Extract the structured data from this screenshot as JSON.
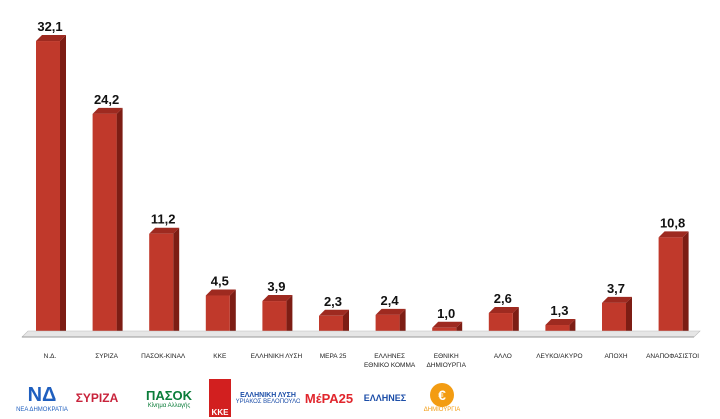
{
  "chart_data": {
    "type": "bar",
    "categories": [
      "Ν.Δ.",
      "ΣΥΡΙΖΑ",
      "ΠΑΣΟΚ-ΚΙΝΑΛ",
      "ΚΚΕ",
      "ΕΛΛΗΝΙΚΗ ΛΥΣΗ",
      "ΜΕΡΑ 25",
      "ΕΛΛΗΝΕΣ ΕΘΝΙΚΟ ΚΟΜΜΑ",
      "ΕΘΝΙΚΗ ΔΗΜΙΟΥΡΓΙΑ",
      "ΑΛΛΟ",
      "ΛΕΥΚΟ/ΑΚΥΡΟ",
      "ΑΠΟΧΗ",
      "ΑΝΑΠΟΦΑΣΙΣΤΟΙ"
    ],
    "values": [
      32.1,
      24.2,
      11.2,
      4.5,
      3.9,
      2.3,
      2.4,
      1.0,
      2.6,
      1.3,
      3.7,
      10.8
    ],
    "value_labels": [
      "32,1",
      "24,2",
      "11,2",
      "4,5",
      "3,9",
      "2,3",
      "2,4",
      "1,0",
      "2,6",
      "1,3",
      "3,7",
      "10,8"
    ],
    "title": "",
    "xlabel": "",
    "ylabel": "",
    "ylim": [
      0,
      34
    ],
    "grid": false,
    "bar_color": "#c0392b",
    "bar_side_color": "#7d1d14",
    "bar_top_color": "#9e2a20"
  },
  "logos": [
    {
      "name": "nd-logo",
      "text": "ΝΕΑ ΔΗΜΟΚΡΑΤΙΑ",
      "mark": "ΝΔ",
      "color": "#1f5fbf"
    },
    {
      "name": "syriza-logo",
      "text": "ΣΥΡΙΖΑ",
      "mark": "",
      "color": "#c8233b"
    },
    {
      "name": "pasok-logo",
      "text": "Κίνημα Αλλαγής",
      "mark": "ΠΑΣΟΚ",
      "color": "#0b7d3a"
    },
    {
      "name": "kke-logo",
      "text": "ΚΚΕ",
      "mark": "",
      "color": "#d21f1f"
    },
    {
      "name": "elliniki-lysi-logo",
      "text": "ΚΥΡΙΑΚΟΣ ΒΕΛΟΠΟΥΛΟΣ",
      "mark": "ΕΛΛΗΝΙΚΗ ΛΥΣΗ",
      "color": "#1c4ea8"
    },
    {
      "name": "mera25-logo",
      "text": "",
      "mark": "ΜέΡΑ25",
      "color": "#e1262d"
    },
    {
      "name": "ellines-logo",
      "text": "ΕΛΛΗΝΕΣ",
      "mark": "",
      "color": "#1c4ea8"
    },
    {
      "name": "ethniki-dimiourgia-logo",
      "text": "ΔΗΜΙΟΥΡΓΙΑ",
      "mark": "€",
      "color": "#f39c12"
    }
  ]
}
